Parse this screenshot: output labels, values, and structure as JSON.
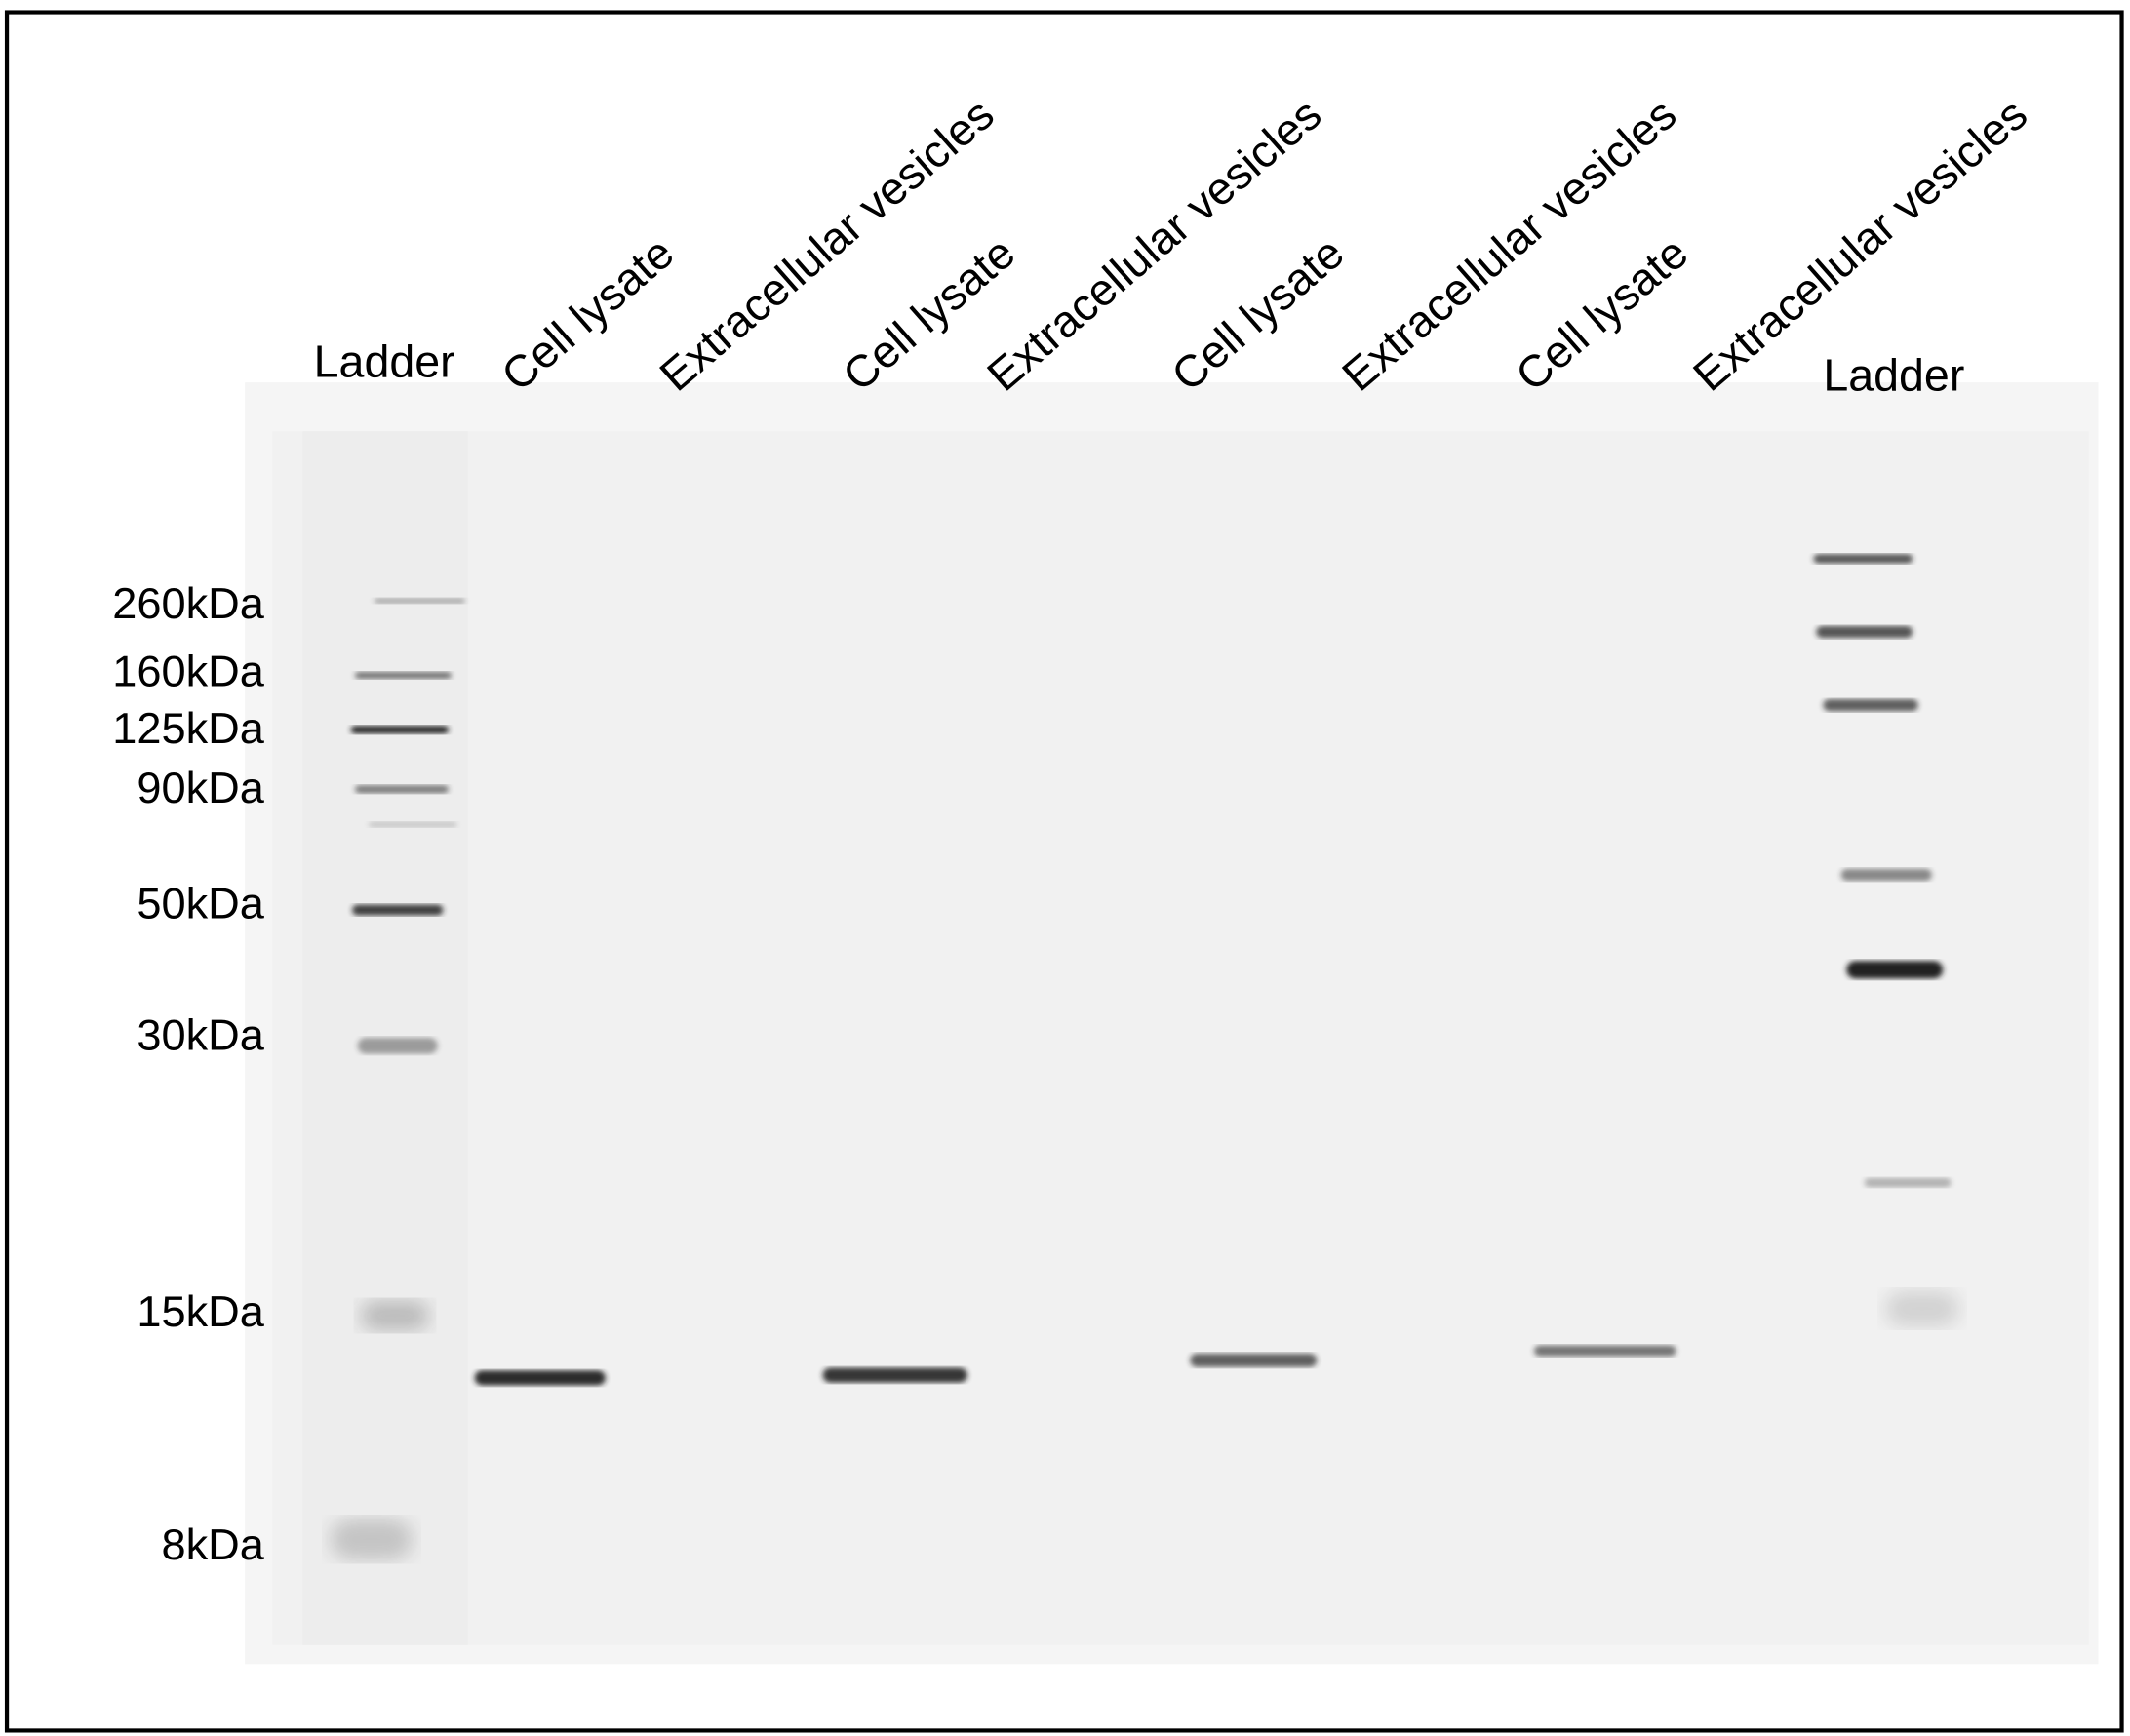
{
  "lanes": {
    "ladder_left": "Ladder",
    "lane1": "Cell lysate",
    "lane2": "Extracellular vesicles",
    "lane3": "Cell lysate",
    "lane4": "Extracellular vesicles",
    "lane5": "Cell lysate",
    "lane6": "Extracellular vesicles",
    "lane7": "Cell lysate",
    "lane8": "Extracellular vesicles",
    "ladder_right": "Ladder"
  },
  "markers": {
    "m260": "260kDa",
    "m160": "160kDa",
    "m125": "125kDa",
    "m90": "90kDa",
    "m50": "50kDa",
    "m30": "30kDa",
    "m15": "15kDa",
    "m8": "8kDa"
  },
  "colors": {
    "border": "#000000",
    "gel": "#f3f3f3",
    "band": "#222222"
  }
}
